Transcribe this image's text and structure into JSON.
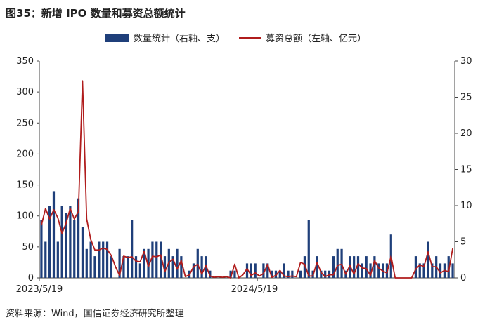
{
  "header": {
    "title": "图35：新增 IPO 数量和募资总额统计"
  },
  "footer": {
    "source": "资料来源：Wind，国信证券经济研究所整理"
  },
  "chart_data": {
    "type": "bar+line",
    "legend": {
      "position": "top",
      "bar_label": "数量统计（右轴、支）",
      "line_label": "募资总额（左轴、亿元）"
    },
    "x_tick_labels": [
      "2023/5/19",
      "2024/5/19"
    ],
    "left_axis": {
      "min": 0,
      "max": 350,
      "ticks": [
        0,
        50,
        100,
        150,
        200,
        250,
        300,
        350
      ]
    },
    "right_axis": {
      "min": 0,
      "max": 30,
      "ticks": [
        0,
        5,
        10,
        15,
        20,
        25,
        30
      ]
    },
    "bar_color": "#1f3f7a",
    "line_color": "#b01c1c",
    "grid": false,
    "series": [
      {
        "name": "数量统计（右轴、支）",
        "axis": "right",
        "values": [
          8,
          5,
          10,
          12,
          5,
          10,
          9,
          10,
          8,
          11,
          7,
          4,
          5,
          3,
          5,
          5,
          5,
          3,
          0,
          4,
          3,
          3,
          8,
          3,
          2,
          4,
          4,
          5,
          5,
          5,
          3,
          4,
          3,
          4,
          3,
          0,
          1,
          2,
          4,
          3,
          3,
          1,
          0,
          0,
          0,
          0,
          1,
          1,
          0,
          0,
          2,
          2,
          2,
          0,
          2,
          2,
          1,
          1,
          1,
          2,
          1,
          1,
          0,
          1,
          3,
          8,
          1,
          3,
          1,
          1,
          1,
          3,
          4,
          4,
          1,
          3,
          3,
          3,
          2,
          3,
          2,
          3,
          2,
          2,
          2,
          6,
          0,
          0,
          0,
          0,
          0,
          3,
          2,
          2,
          5,
          2,
          3,
          2,
          2,
          3,
          2
        ]
      },
      {
        "name": "募资总额（左轴、亿元）",
        "axis": "left",
        "values": [
          85,
          112,
          95,
          110,
          97,
          72,
          88,
          112,
          95,
          107,
          318,
          95,
          62,
          45,
          45,
          48,
          46,
          36,
          18,
          4,
          35,
          33,
          34,
          27,
          26,
          43,
          18,
          35,
          34,
          37,
          10,
          25,
          30,
          14,
          28,
          2,
          5,
          18,
          22,
          6,
          20,
          3,
          1,
          2,
          1,
          2,
          0,
          22,
          0,
          5,
          15,
          4,
          8,
          3,
          7,
          22,
          1,
          4,
          12,
          3,
          2,
          3,
          2,
          25,
          22,
          3,
          3,
          25,
          9,
          2,
          5,
          5,
          20,
          22,
          6,
          20,
          6,
          23,
          16,
          15,
          4,
          28,
          16,
          11,
          8,
          35,
          0,
          0,
          0,
          0,
          0,
          14,
          21,
          18,
          42,
          18,
          18,
          8,
          12,
          10,
          48
        ]
      }
    ]
  }
}
